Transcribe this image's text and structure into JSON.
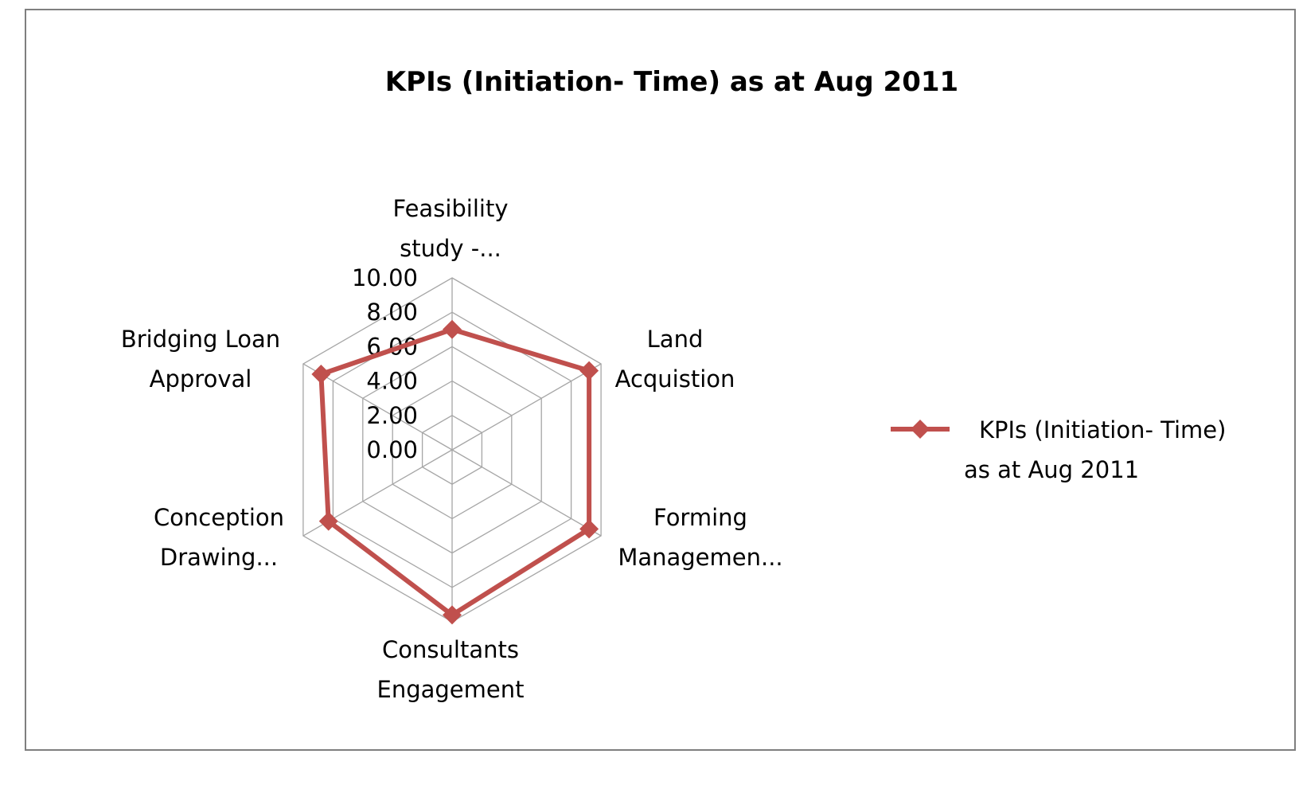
{
  "chart_data": {
    "type": "radar",
    "title": "KPIs (Initiation- Time) as at Aug 2011",
    "categories": [
      [
        "Feasibility",
        "study -..."
      ],
      [
        "Land",
        "Acquistion"
      ],
      [
        "Forming",
        "Managemen..."
      ],
      [
        "Consultants",
        "Engagement"
      ],
      [
        "Conception",
        "Drawing..."
      ],
      [
        "Bridging  Loan",
        "Approval"
      ]
    ],
    "radial_ticks": [
      "0.00",
      "2.00",
      "4.00",
      "6.00",
      "8.00",
      "10.00"
    ],
    "rlim": [
      0,
      10
    ],
    "grid": true,
    "series": [
      {
        "name": [
          "KPIs (Initiation- Time)",
          "as at Aug 2011"
        ],
        "values": [
          7,
          9.2,
          9.2,
          9.6,
          8.3,
          8.8
        ],
        "color": "#c0504d",
        "marker": "diamond"
      }
    ],
    "legend_position": "right"
  }
}
